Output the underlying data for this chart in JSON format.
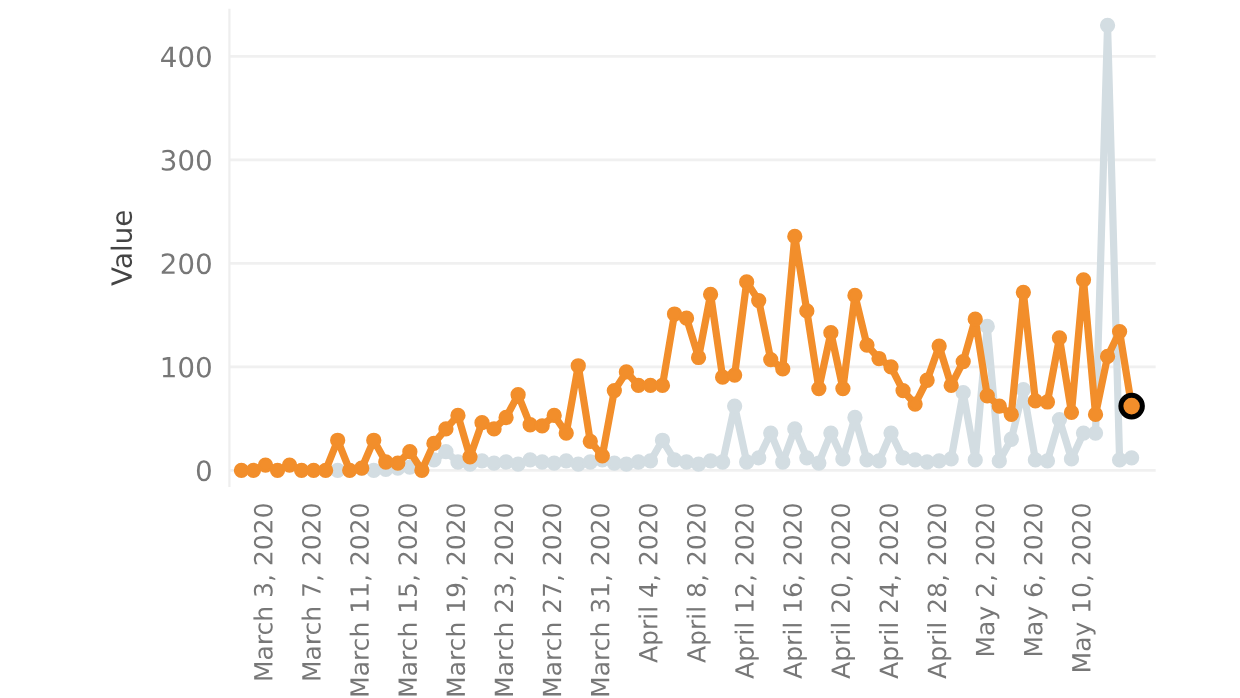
{
  "chart_data": {
    "type": "line",
    "ylabel": "Value",
    "x": [
      "2020-03-01",
      "2020-03-02",
      "2020-03-03",
      "2020-03-04",
      "2020-03-05",
      "2020-03-06",
      "2020-03-07",
      "2020-03-08",
      "2020-03-09",
      "2020-03-10",
      "2020-03-11",
      "2020-03-12",
      "2020-03-13",
      "2020-03-14",
      "2020-03-15",
      "2020-03-16",
      "2020-03-17",
      "2020-03-18",
      "2020-03-19",
      "2020-03-20",
      "2020-03-21",
      "2020-03-22",
      "2020-03-23",
      "2020-03-24",
      "2020-03-25",
      "2020-03-26",
      "2020-03-27",
      "2020-03-28",
      "2020-03-29",
      "2020-03-30",
      "2020-03-31",
      "2020-04-01",
      "2020-04-02",
      "2020-04-03",
      "2020-04-04",
      "2020-04-05",
      "2020-04-06",
      "2020-04-07",
      "2020-04-08",
      "2020-04-09",
      "2020-04-10",
      "2020-04-11",
      "2020-04-12",
      "2020-04-13",
      "2020-04-14",
      "2020-04-15",
      "2020-04-16",
      "2020-04-17",
      "2020-04-18",
      "2020-04-19",
      "2020-04-20",
      "2020-04-21",
      "2020-04-22",
      "2020-04-23",
      "2020-04-24",
      "2020-04-25",
      "2020-04-26",
      "2020-04-27",
      "2020-04-28",
      "2020-04-29",
      "2020-04-30",
      "2020-05-01",
      "2020-05-02",
      "2020-05-03",
      "2020-05-04",
      "2020-05-05",
      "2020-05-06",
      "2020-05-07",
      "2020-05-08",
      "2020-05-09",
      "2020-05-10",
      "2020-05-11",
      "2020-05-12",
      "2020-05-13",
      "2020-05-14"
    ],
    "series": [
      {
        "color": "#d3dde2",
        "marker": "circle",
        "values": [
          null,
          null,
          null,
          null,
          null,
          null,
          null,
          null,
          0,
          null,
          2,
          0,
          1,
          2,
          3,
          null,
          10,
          18,
          8,
          6,
          9,
          7,
          8,
          6,
          10,
          8,
          7,
          9,
          6,
          8,
          10,
          7,
          6,
          8,
          9,
          29,
          10,
          8,
          6,
          9,
          8,
          62,
          8,
          12,
          36,
          8,
          40,
          12,
          7,
          36,
          11,
          51,
          10,
          9,
          36,
          12,
          10,
          8,
          9,
          11,
          75,
          10,
          139,
          9,
          30,
          78,
          10,
          9,
          49,
          11,
          36,
          36,
          430,
          10,
          12
        ]
      },
      {
        "color": "#f28e2b",
        "marker": "circle",
        "values": [
          0,
          0,
          5,
          0,
          5,
          0,
          0,
          0,
          29,
          0,
          2,
          29,
          8,
          7,
          18,
          0,
          26,
          40,
          53,
          13,
          46,
          40,
          51,
          73,
          44,
          43,
          53,
          36,
          101,
          28,
          14,
          77,
          95,
          82,
          82,
          82,
          151,
          147,
          109,
          170,
          90,
          92,
          182,
          164,
          107,
          98,
          226,
          154,
          79,
          133,
          79,
          169,
          121,
          108,
          100,
          77,
          64,
          87,
          120,
          82,
          105,
          146,
          72,
          62,
          54,
          172,
          67,
          66,
          128,
          56,
          184,
          54,
          110,
          134,
          62
        ]
      },
      {
        "type": "scatter",
        "color": "#f28e2b",
        "marker": "circle",
        "x": [
          "2020-05-14"
        ],
        "values": [
          62
        ]
      }
    ],
    "xlim": [
      "2020-02-29",
      "2020-05-16"
    ],
    "xticks": [
      {
        "value": "2020-03-03",
        "label": "March 3, 2020"
      },
      {
        "value": "2020-03-07",
        "label": "March 7, 2020"
      },
      {
        "value": "2020-03-11",
        "label": "March 11, 2020"
      },
      {
        "value": "2020-03-15",
        "label": "March 15, 2020"
      },
      {
        "value": "2020-03-19",
        "label": "March 19, 2020"
      },
      {
        "value": "2020-03-23",
        "label": "March 23, 2020"
      },
      {
        "value": "2020-03-27",
        "label": "March 27, 2020"
      },
      {
        "value": "2020-03-31",
        "label": "March 31, 2020"
      },
      {
        "value": "2020-04-04",
        "label": "April 4, 2020"
      },
      {
        "value": "2020-04-08",
        "label": "April 8, 2020"
      },
      {
        "value": "2020-04-12",
        "label": "April 12, 2020"
      },
      {
        "value": "2020-04-16",
        "label": "April 16, 2020"
      },
      {
        "value": "2020-04-20",
        "label": "April 20, 2020"
      },
      {
        "value": "2020-04-24",
        "label": "April 24, 2020"
      },
      {
        "value": "2020-04-28",
        "label": "April 28, 2020"
      },
      {
        "value": "2020-05-02",
        "label": "May 2, 2020"
      },
      {
        "value": "2020-05-06",
        "label": "May 6, 2020"
      },
      {
        "value": "2020-05-10",
        "label": "May 10, 2020"
      }
    ],
    "ylim": [
      -15,
      445
    ],
    "yticks": [
      0,
      100,
      200,
      300,
      400
    ],
    "grid": "y",
    "legend": false
  }
}
